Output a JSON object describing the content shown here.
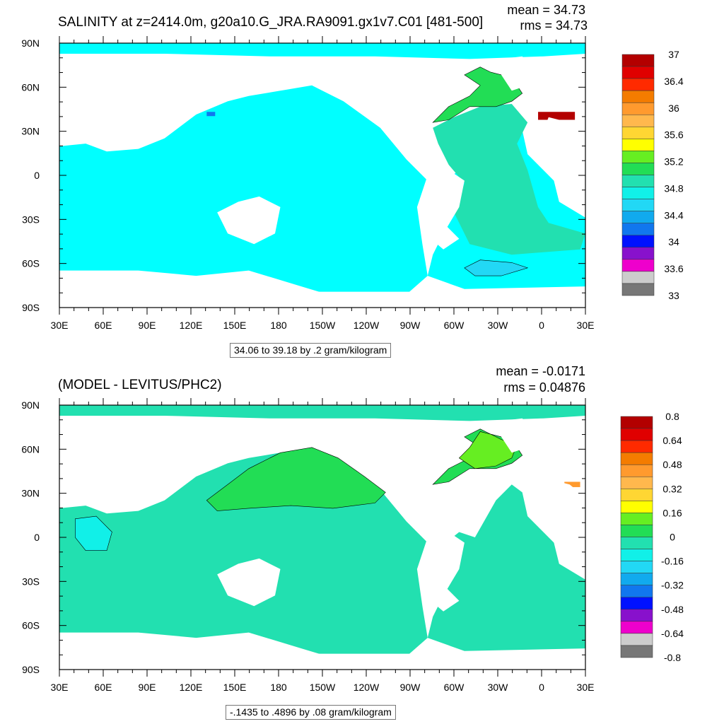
{
  "panels": [
    {
      "id": "top",
      "title": "SALINITY at z=2414.0m, g20a10.G_JRA.RA9091.gx1v7.C01 [481-500]",
      "mean": "mean = 34.73",
      "rms": "rms = 34.73",
      "range_note": "34.06 to 39.18 by .2 gram/kilogram",
      "colorbar_labels": [
        "37",
        "36.4",
        "36",
        "35.6",
        "35.2",
        "34.8",
        "34.4",
        "34",
        "33.6",
        "33"
      ],
      "colorbar_colors": [
        "#b30000",
        "#e00000",
        "#ff2a00",
        "#f47c00",
        "#ff9a2e",
        "#ffb84d",
        "#ffd633",
        "#ffff00",
        "#66ee22",
        "#22dd55",
        "#22e0b0",
        "#11f0e8",
        "#22d8f5",
        "#11aaee",
        "#1177ee",
        "#0011ff",
        "#8811cc",
        "#ee00cc",
        "#cccccc",
        "#777777"
      ],
      "fills": {
        "ocean": "#00ffff",
        "atlantic": "#22e0b0",
        "north_atlantic": "#22dd55",
        "southern": "#11f0e8",
        "weddell": "#22d8f5",
        "mediterranean": "#b30000"
      }
    },
    {
      "id": "bottom",
      "title": "(MODEL - LEVITUS/PHC2)",
      "mean": "mean = -0.0171",
      "rms": "rms = 0.04876",
      "range_note": "-.1435 to .4896 by .08 gram/kilogram",
      "colorbar_labels": [
        "0.8",
        "0.64",
        "0.48",
        "0.32",
        "0.16",
        "0",
        "-0.16",
        "-0.32",
        "-0.48",
        "-0.64",
        "-0.8"
      ],
      "colorbar_colors": [
        "#b30000",
        "#e00000",
        "#ff2a00",
        "#f47c00",
        "#ff9a2e",
        "#ffb84d",
        "#ffd633",
        "#ffff00",
        "#66ee22",
        "#22dd55",
        "#22e0b0",
        "#11f0e8",
        "#22d8f5",
        "#11aaee",
        "#1177ee",
        "#0011ff",
        "#8811cc",
        "#ee00cc",
        "#cccccc",
        "#777777"
      ],
      "fills": {
        "ocean": "#22e0b0",
        "north_pacific": "#22dd55",
        "north_atlantic": "#22dd55",
        "labrador": "#66ee22",
        "indian_west": "#11f0e8",
        "mediterranean": "#ff9a2e"
      }
    }
  ],
  "axes": {
    "lat_labels": [
      "90N",
      "60N",
      "30N",
      "0",
      "30S",
      "60S",
      "90S"
    ],
    "lon_labels": [
      "30E",
      "60E",
      "90E",
      "120E",
      "150E",
      "180",
      "150W",
      "120W",
      "90W",
      "60W",
      "30W",
      "0",
      "30E"
    ]
  }
}
